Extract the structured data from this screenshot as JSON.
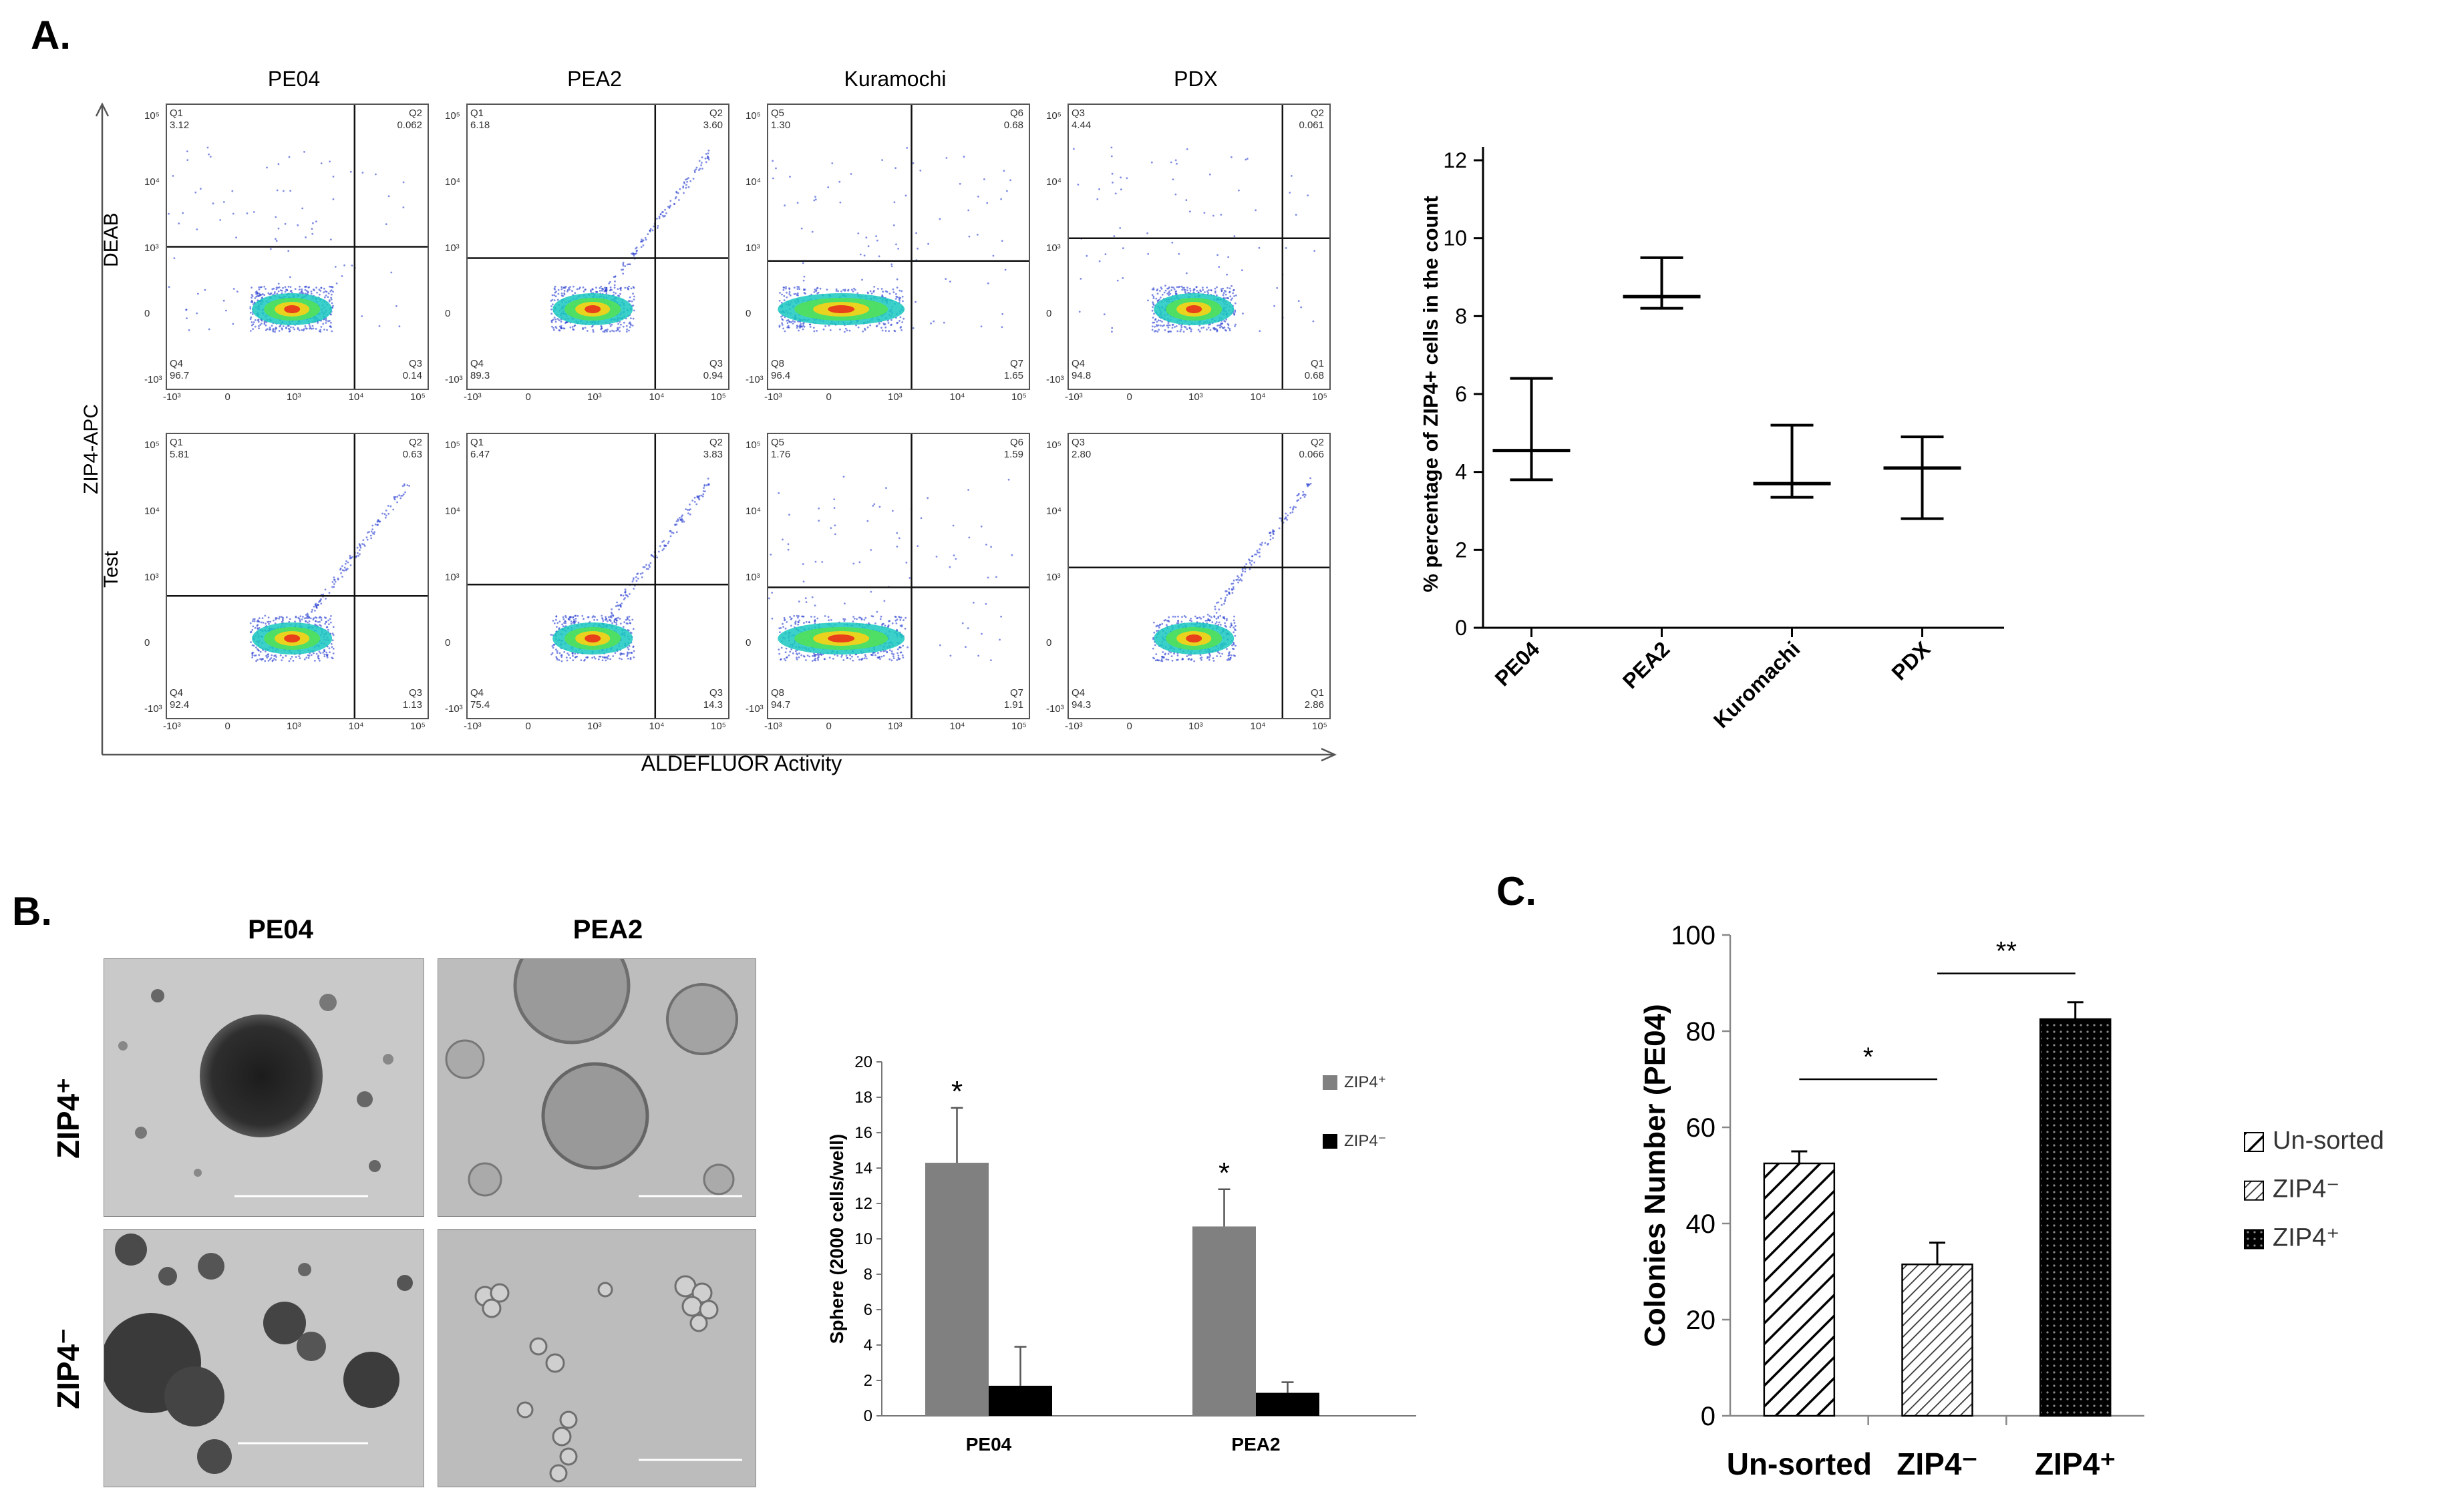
{
  "panel_labels": {
    "a": "A.",
    "b": "B.",
    "c": "C."
  },
  "panel_a": {
    "columns": [
      "PE04",
      "PEA2",
      "Kuramochi",
      "PDX"
    ],
    "row_labels": [
      "DEAB",
      "Test"
    ],
    "y_axis_label": "ZIP4-APC",
    "x_axis_label": "ALDEFLUOR Activity",
    "quadrants": [
      [
        {
          "ul": "Q1\n3.12",
          "ur": "Q2\n0.062",
          "ll": "Q4\n96.7",
          "lr": "Q3\n0.14"
        },
        {
          "ul": "Q1\n6.18",
          "ur": "Q2\n3.60",
          "ll": "Q4\n89.3",
          "lr": "Q3\n0.94"
        },
        {
          "ul": "Q5\n1.30",
          "ur": "Q6\n0.68",
          "ll": "Q8\n96.4",
          "lr": "Q7\n1.65"
        },
        {
          "ul": "Q3\n4.44",
          "ur": "Q2\n0.061",
          "ll": "Q4\n94.8",
          "lr": "Q1\n0.68"
        }
      ],
      [
        {
          "ul": "Q1\n5.81",
          "ur": "Q2\n0.63",
          "ll": "Q4\n92.4",
          "lr": "Q3\n1.13"
        },
        {
          "ul": "Q1\n6.47",
          "ur": "Q2\n3.83",
          "ll": "Q4\n75.4",
          "lr": "Q3\n14.3"
        },
        {
          "ul": "Q5\n1.76",
          "ur": "Q6\n1.59",
          "ll": "Q8\n94.7",
          "lr": "Q7\n1.91"
        },
        {
          "ul": "Q3\n2.80",
          "ur": "Q2\n0.066",
          "ll": "Q4\n94.3",
          "lr": "Q1\n2.86"
        }
      ]
    ],
    "tick_labels_x": [
      "-10³",
      "0",
      "10³",
      "10⁴",
      "10⁵"
    ],
    "tick_labels_y": [
      "10⁵",
      "10⁴",
      "10³",
      "0",
      "-10³"
    ]
  },
  "panel_b": {
    "columns": [
      "PE04",
      "PEA2"
    ],
    "rows": [
      "ZIP4⁺",
      "ZIP4⁻"
    ]
  },
  "chart_data": [
    {
      "id": "zip4_percentage",
      "type": "scatter",
      "title": "",
      "categories": [
        "PE04",
        "PEA2",
        "Kuromachi",
        "PDX"
      ],
      "mean": [
        4.55,
        8.5,
        3.7,
        4.1
      ],
      "upper": [
        6.4,
        9.5,
        5.2,
        4.9
      ],
      "lower": [
        3.8,
        8.2,
        3.35,
        2.8
      ],
      "ylabel": "% percentage of ZIP4+ cells in the count",
      "xlabel": "",
      "ylim": [
        0,
        12
      ],
      "yticks": [
        "0",
        "2",
        "4",
        "6",
        "8",
        "10",
        "12"
      ]
    },
    {
      "id": "sphere_formation",
      "type": "bar",
      "categories": [
        "PE04",
        "PEA2"
      ],
      "series": [
        {
          "name": "ZIP4⁺",
          "values": [
            14.3,
            10.7
          ],
          "errors": [
            3.1,
            2.1
          ],
          "color": "#808080",
          "annotations": [
            "*",
            "*"
          ]
        },
        {
          "name": "ZIP4⁻",
          "values": [
            1.7,
            1.3
          ],
          "errors": [
            2.2,
            0.6
          ],
          "color": "#000000",
          "annotations": [
            "",
            ""
          ]
        }
      ],
      "ylabel": "Sphere (2000 cells/well)",
      "xlabel": "",
      "ylim": [
        0,
        20
      ],
      "yticks": [
        "0",
        "2",
        "4",
        "6",
        "8",
        "10",
        "12",
        "14",
        "16",
        "18",
        "20"
      ],
      "legend": "top-right"
    },
    {
      "id": "colony_formation",
      "type": "bar",
      "categories": [
        "Un-sorted",
        "ZIP4⁻",
        "ZIP4⁺"
      ],
      "values": [
        52.5,
        31.5,
        82.5
      ],
      "errors": [
        2.5,
        4.5,
        3.5
      ],
      "series_names": [
        "Un-sorted",
        "ZIP4⁻",
        "ZIP4⁺"
      ],
      "ylabel": "Colonies Number (PE04)",
      "xlabel": "",
      "ylim": [
        0,
        100
      ],
      "yticks": [
        "0",
        "20",
        "40",
        "60",
        "80",
        "100"
      ],
      "significance": [
        {
          "label": "*",
          "from": "Un-sorted",
          "to": "ZIP4⁻"
        },
        {
          "label": "**",
          "from": "ZIP4⁻",
          "to": "ZIP4⁺"
        }
      ],
      "legend": "right"
    }
  ]
}
